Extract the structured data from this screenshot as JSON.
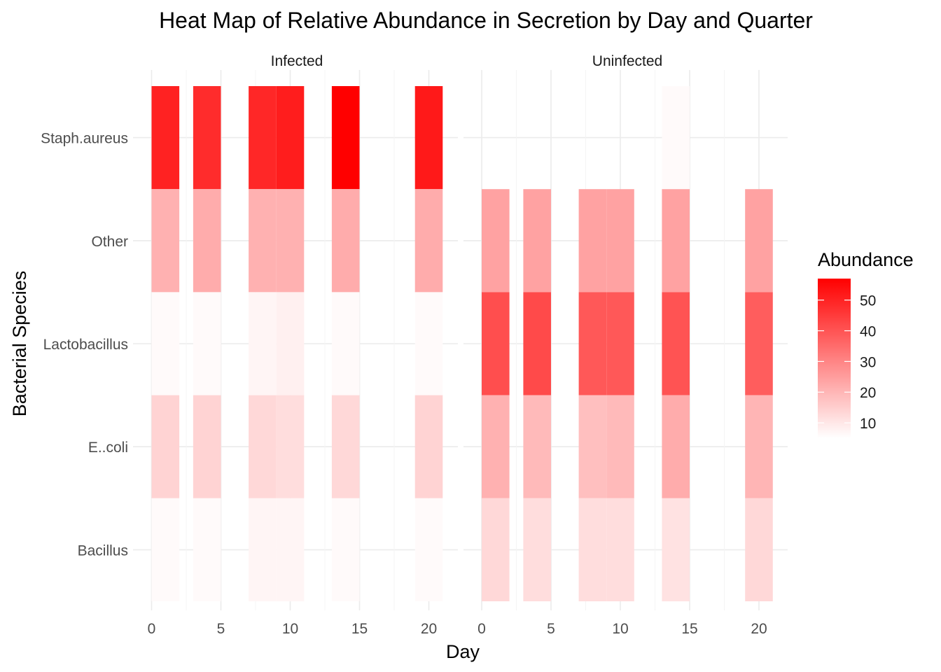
{
  "chart_data": {
    "type": "heatmap",
    "title": "Heat Map of Relative Abundance in Secretion by Day and Quarter",
    "xlabel": "Day",
    "ylabel": "Bacterial Species",
    "facets": [
      "Infected",
      "Uninfected"
    ],
    "species": [
      "Staph.aureus",
      "Other",
      "Lactobacillus",
      "E..coli",
      "Bacillus"
    ],
    "x_ticks": [
      0,
      5,
      10,
      15,
      20
    ],
    "xlim": [
      -0.5,
      21.5
    ],
    "legend": {
      "title": "Abundance",
      "breaks": [
        10,
        20,
        30,
        40,
        50
      ],
      "min": 5,
      "max": 57,
      "low_color": "#FFFFFF",
      "high_color": "#FF0000",
      "position": "right"
    },
    "grid": true,
    "tiles": [
      {
        "facet": "Infected",
        "day": 1,
        "values": {
          "Staph.aureus": 50,
          "Other": 21,
          "Lactobacillus": 6,
          "E..coli": 14,
          "Bacillus": 6
        }
      },
      {
        "facet": "Infected",
        "day": 4,
        "values": {
          "Staph.aureus": 48,
          "Other": 22,
          "Lactobacillus": 6,
          "E..coli": 14,
          "Bacillus": 6
        }
      },
      {
        "facet": "Infected",
        "day": 8,
        "values": {
          "Staph.aureus": 49,
          "Other": 21,
          "Lactobacillus": 7,
          "E..coli": 13,
          "Bacillus": 7
        }
      },
      {
        "facet": "Infected",
        "day": 10,
        "values": {
          "Staph.aureus": 51,
          "Other": 21,
          "Lactobacillus": 8,
          "E..coli": 12,
          "Bacillus": 7
        }
      },
      {
        "facet": "Infected",
        "day": 14,
        "values": {
          "Staph.aureus": 57,
          "Other": 22,
          "Lactobacillus": 6,
          "E..coli": 13,
          "Bacillus": 6
        }
      },
      {
        "facet": "Infected",
        "day": 20,
        "values": {
          "Staph.aureus": 52,
          "Other": 22,
          "Lactobacillus": 6,
          "E..coli": 14,
          "Bacillus": 6
        }
      },
      {
        "facet": "Uninfected",
        "day": 1,
        "values": {
          "Other": 24,
          "Lactobacillus": 41,
          "E..coli": 21,
          "Bacillus": 13
        }
      },
      {
        "facet": "Uninfected",
        "day": 4,
        "values": {
          "Other": 24,
          "Lactobacillus": 42,
          "E..coli": 19,
          "Bacillus": 12
        }
      },
      {
        "facet": "Uninfected",
        "day": 8,
        "values": {
          "Other": 24,
          "Lactobacillus": 39,
          "E..coli": 18,
          "Bacillus": 12
        }
      },
      {
        "facet": "Uninfected",
        "day": 10,
        "values": {
          "Other": 24,
          "Lactobacillus": 39,
          "E..coli": 19,
          "Bacillus": 12
        }
      },
      {
        "facet": "Uninfected",
        "day": 14,
        "values": {
          "Staph.aureus": 6,
          "Other": 24,
          "Lactobacillus": 40,
          "E..coli": 22,
          "Bacillus": 11
        }
      },
      {
        "facet": "Uninfected",
        "day": 20,
        "values": {
          "Other": 24,
          "Lactobacillus": 38,
          "E..coli": 20,
          "Bacillus": 13
        }
      }
    ]
  }
}
